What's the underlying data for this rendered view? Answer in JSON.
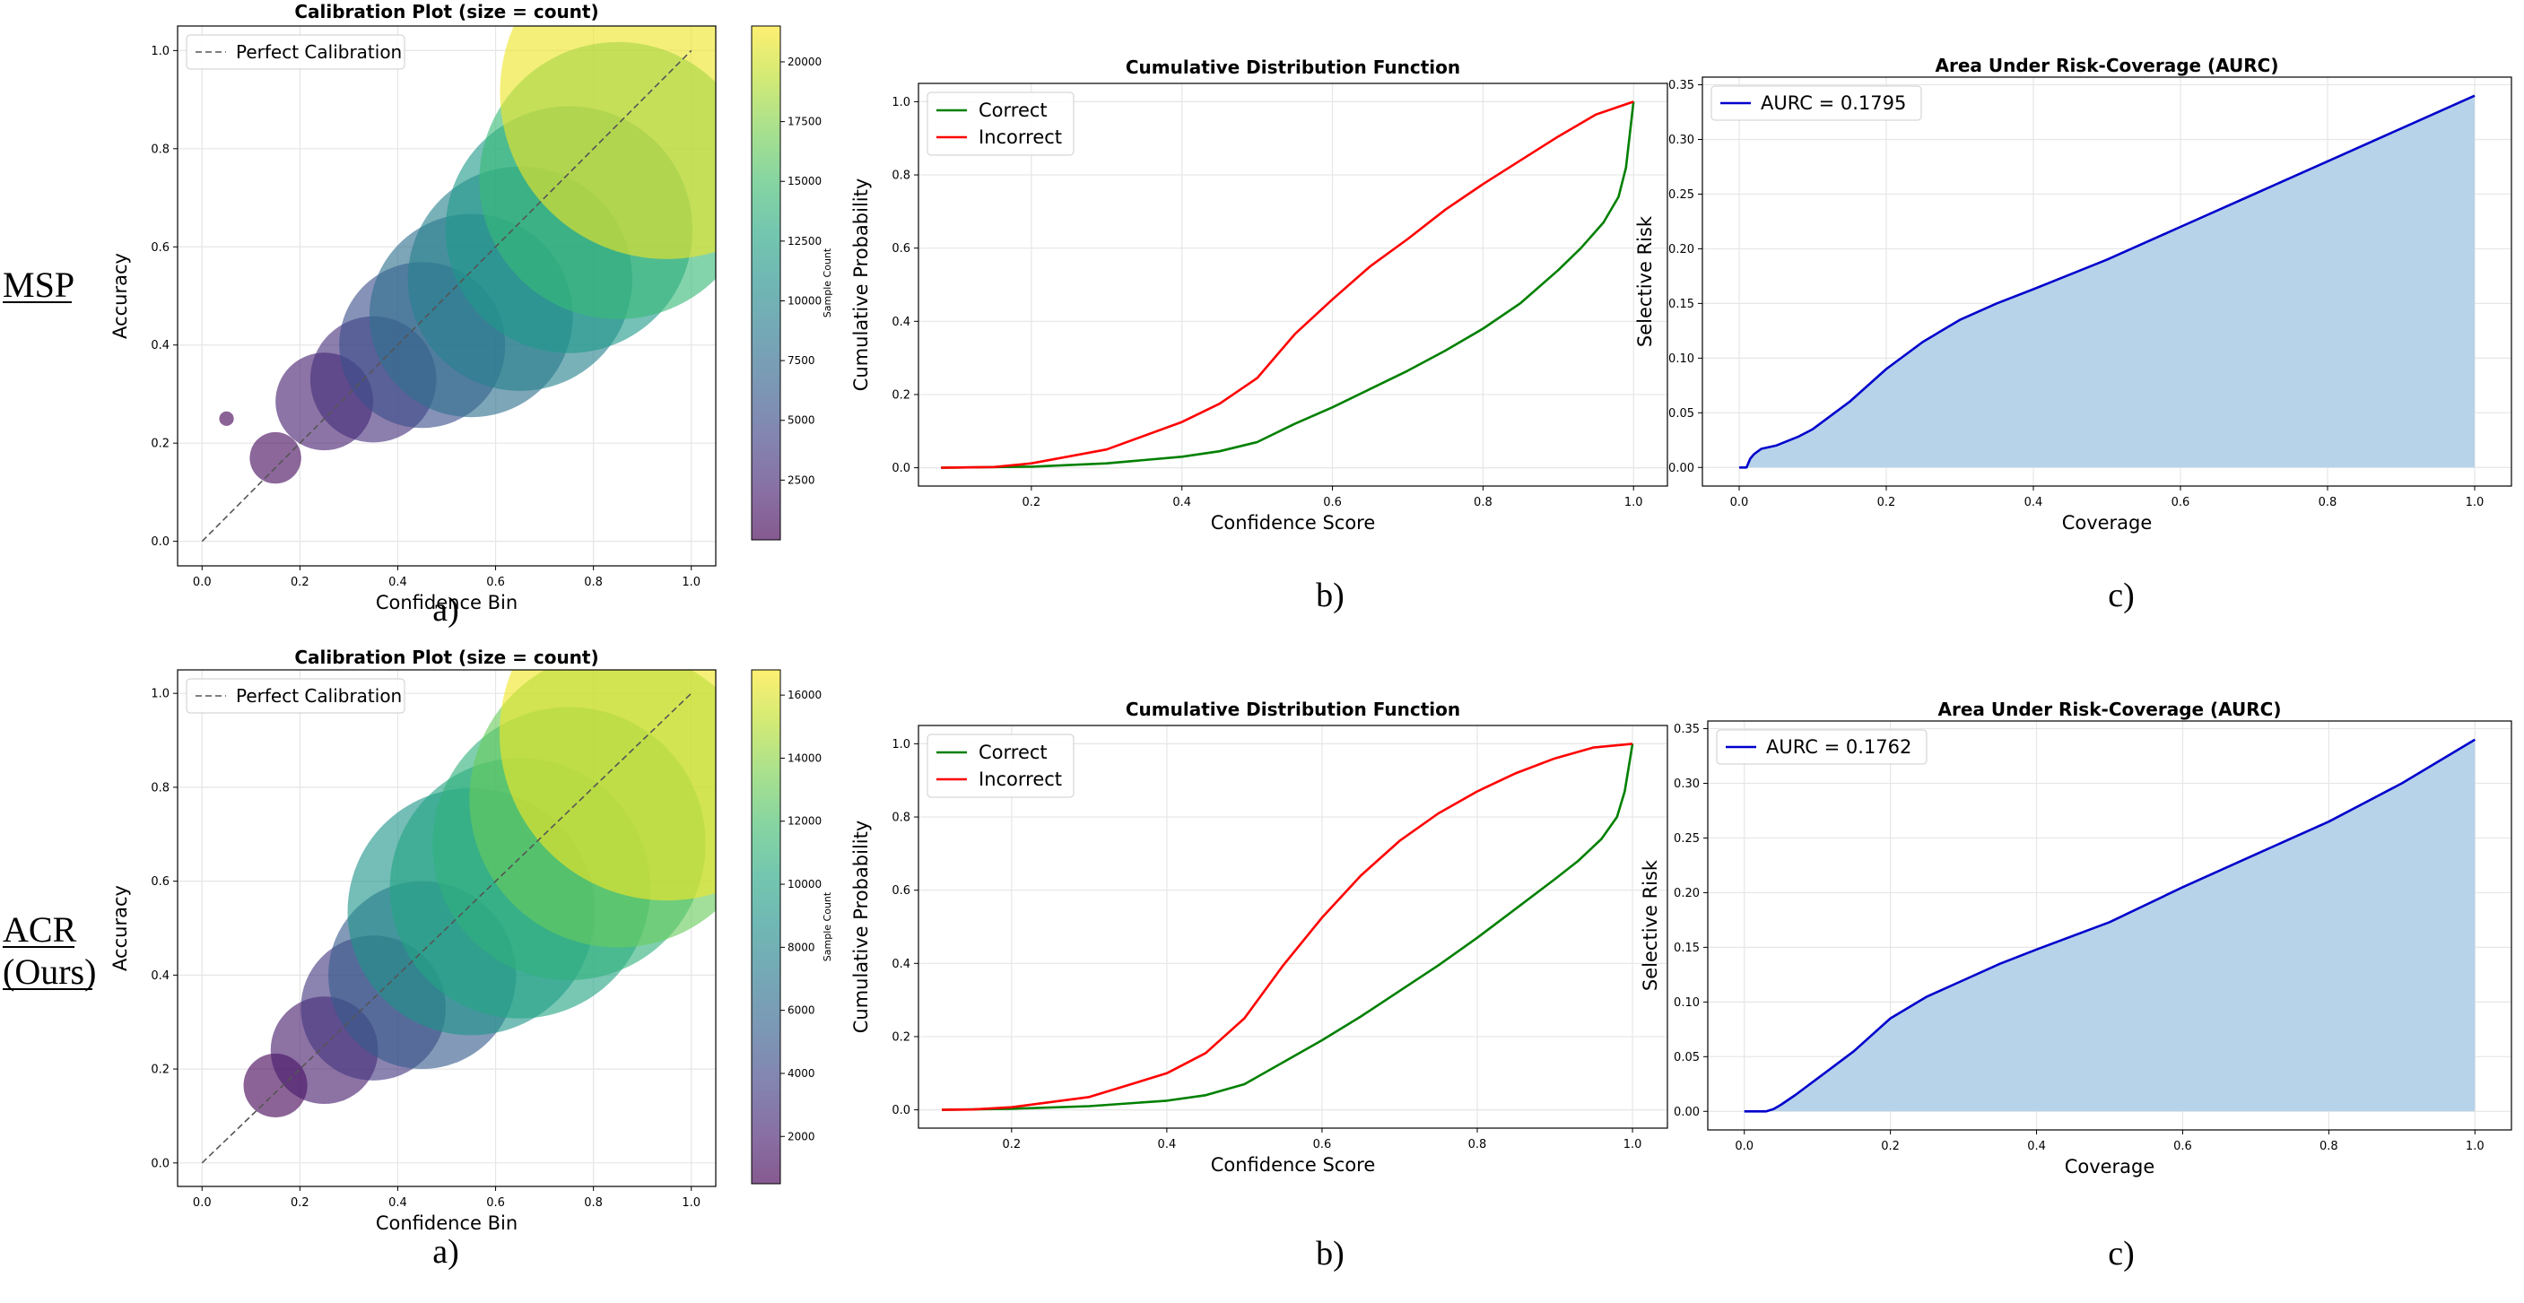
{
  "row_labels": [
    {
      "lines": [
        "MSP"
      ]
    },
    {
      "lines": [
        "ACR",
        "(Ours)"
      ]
    }
  ],
  "colors": {
    "correct": "#008000",
    "incorrect": "#ff0000",
    "aurc_line": "#0000cc",
    "aurc_fill": "#b7d3ea",
    "diag": "#555555",
    "grid": "#e6e6e6"
  },
  "chart_data": [
    {
      "id": "msp-calibration",
      "type": "scatter",
      "title": "Calibration Plot (size = count)",
      "xlabel": "Confidence Bin",
      "ylabel": "Accuracy",
      "xlim": [
        -0.05,
        1.05
      ],
      "ylim": [
        -0.05,
        1.05
      ],
      "xticks": [
        0.0,
        0.2,
        0.4,
        0.6,
        0.8,
        1.0
      ],
      "yticks": [
        0.0,
        0.2,
        0.4,
        0.6,
        0.8,
        1.0
      ],
      "legend": [
        "Perfect Calibration"
      ],
      "legend_position": "top-left",
      "sub_label": "a)",
      "colorbar": {
        "label": "Sample Count",
        "min": 0,
        "max": 21500,
        "ticks": [
          2500,
          5000,
          7500,
          10000,
          12500,
          15000,
          17500,
          20000
        ]
      },
      "points": [
        {
          "x": 0.05,
          "y": 0.25,
          "count": 40
        },
        {
          "x": 0.15,
          "y": 0.17,
          "count": 500
        },
        {
          "x": 0.25,
          "y": 0.285,
          "count": 1800
        },
        {
          "x": 0.35,
          "y": 0.33,
          "count": 3000
        },
        {
          "x": 0.45,
          "y": 0.4,
          "count": 5200
        },
        {
          "x": 0.55,
          "y": 0.46,
          "count": 7800
        },
        {
          "x": 0.65,
          "y": 0.535,
          "count": 9500
        },
        {
          "x": 0.75,
          "y": 0.635,
          "count": 11500
        },
        {
          "x": 0.85,
          "y": 0.735,
          "count": 14500
        },
        {
          "x": 0.95,
          "y": 0.915,
          "count": 21000
        }
      ]
    },
    {
      "id": "msp-cdf",
      "type": "line",
      "title": "Cumulative Distribution Function",
      "xlabel": "Confidence Score",
      "ylabel": "Cumulative Probability",
      "xlim": [
        0.05,
        1.045
      ],
      "ylim": [
        -0.05,
        1.05
      ],
      "xticks": [
        0.2,
        0.4,
        0.6,
        0.8,
        1.0
      ],
      "yticks": [
        0.0,
        0.2,
        0.4,
        0.6,
        0.8,
        1.0
      ],
      "legend_position": "top-left",
      "sub_label": "b)",
      "series": [
        {
          "name": "Correct",
          "color_key": "correct",
          "x": [
            0.08,
            0.2,
            0.3,
            0.4,
            0.45,
            0.5,
            0.55,
            0.6,
            0.65,
            0.7,
            0.75,
            0.8,
            0.85,
            0.9,
            0.93,
            0.96,
            0.98,
            0.99,
            1.0
          ],
          "y": [
            0.0,
            0.003,
            0.012,
            0.03,
            0.045,
            0.07,
            0.12,
            0.165,
            0.215,
            0.265,
            0.32,
            0.38,
            0.45,
            0.54,
            0.6,
            0.67,
            0.74,
            0.82,
            1.0
          ]
        },
        {
          "name": "Incorrect",
          "color_key": "incorrect",
          "x": [
            0.08,
            0.15,
            0.2,
            0.3,
            0.4,
            0.45,
            0.5,
            0.55,
            0.6,
            0.65,
            0.7,
            0.75,
            0.8,
            0.85,
            0.9,
            0.95,
            1.0
          ],
          "y": [
            0.0,
            0.002,
            0.012,
            0.05,
            0.125,
            0.175,
            0.245,
            0.365,
            0.46,
            0.55,
            0.625,
            0.705,
            0.775,
            0.84,
            0.905,
            0.965,
            1.0
          ]
        }
      ]
    },
    {
      "id": "msp-aurc",
      "type": "area",
      "title": "Area Under Risk-Coverage (AURC)",
      "xlabel": "Coverage",
      "ylabel": "Selective Risk",
      "xlim": [
        -0.05,
        1.05
      ],
      "ylim": [
        -0.017,
        0.357
      ],
      "xticks": [
        0.0,
        0.2,
        0.4,
        0.6,
        0.8,
        1.0
      ],
      "yticks": [
        0.0,
        0.05,
        0.1,
        0.15,
        0.2,
        0.25,
        0.3,
        0.35
      ],
      "legend_position": "top-left",
      "sub_label": "c)",
      "series": [
        {
          "name": "AURC = 0.1795",
          "color_key": "aurc_line",
          "x": [
            0.0,
            0.01,
            0.015,
            0.02,
            0.03,
            0.05,
            0.08,
            0.1,
            0.15,
            0.2,
            0.25,
            0.3,
            0.35,
            0.4,
            0.5,
            0.6,
            0.7,
            0.8,
            0.9,
            1.0
          ],
          "y": [
            0.0,
            0.0,
            0.008,
            0.012,
            0.017,
            0.02,
            0.028,
            0.035,
            0.06,
            0.09,
            0.115,
            0.135,
            0.15,
            0.163,
            0.19,
            0.22,
            0.25,
            0.28,
            0.31,
            0.34
          ]
        }
      ]
    },
    {
      "id": "acr-calibration",
      "type": "scatter",
      "title": "Calibration Plot (size = count)",
      "xlabel": "Confidence Bin",
      "ylabel": "Accuracy",
      "xlim": [
        -0.05,
        1.05
      ],
      "ylim": [
        -0.05,
        1.05
      ],
      "xticks": [
        0.0,
        0.2,
        0.4,
        0.6,
        0.8,
        1.0
      ],
      "yticks": [
        0.0,
        0.2,
        0.4,
        0.6,
        0.8,
        1.0
      ],
      "legend": [
        "Perfect Calibration"
      ],
      "legend_position": "top-left",
      "sub_label": "a)",
      "colorbar": {
        "label": "Sample Count",
        "min": 500,
        "max": 16800,
        "ticks": [
          2000,
          4000,
          6000,
          8000,
          10000,
          12000,
          14000,
          16000
        ]
      },
      "points": [
        {
          "x": 0.15,
          "y": 0.165,
          "count": 600
        },
        {
          "x": 0.25,
          "y": 0.24,
          "count": 1700
        },
        {
          "x": 0.35,
          "y": 0.33,
          "count": 3100
        },
        {
          "x": 0.45,
          "y": 0.4,
          "count": 5200
        },
        {
          "x": 0.55,
          "y": 0.535,
          "count": 9000
        },
        {
          "x": 0.65,
          "y": 0.585,
          "count": 10000
        },
        {
          "x": 0.75,
          "y": 0.68,
          "count": 11000
        },
        {
          "x": 0.85,
          "y": 0.775,
          "count": 13000
        },
        {
          "x": 0.95,
          "y": 0.915,
          "count": 16500
        }
      ]
    },
    {
      "id": "acr-cdf",
      "type": "line",
      "title": "Cumulative Distribution Function",
      "xlabel": "Confidence Score",
      "ylabel": "Cumulative Probability",
      "xlim": [
        0.08,
        1.045
      ],
      "ylim": [
        -0.05,
        1.05
      ],
      "xticks": [
        0.2,
        0.4,
        0.6,
        0.8,
        1.0
      ],
      "yticks": [
        0.0,
        0.2,
        0.4,
        0.6,
        0.8,
        1.0
      ],
      "legend_position": "top-left",
      "sub_label": "b)",
      "series": [
        {
          "name": "Correct",
          "color_key": "correct",
          "x": [
            0.11,
            0.2,
            0.3,
            0.4,
            0.45,
            0.5,
            0.55,
            0.6,
            0.65,
            0.7,
            0.75,
            0.8,
            0.85,
            0.9,
            0.93,
            0.96,
            0.98,
            0.99,
            1.0
          ],
          "y": [
            0.0,
            0.003,
            0.01,
            0.025,
            0.04,
            0.07,
            0.13,
            0.19,
            0.255,
            0.325,
            0.395,
            0.47,
            0.55,
            0.63,
            0.68,
            0.74,
            0.8,
            0.87,
            1.0
          ]
        },
        {
          "name": "Incorrect",
          "color_key": "incorrect",
          "x": [
            0.11,
            0.15,
            0.2,
            0.3,
            0.4,
            0.45,
            0.5,
            0.55,
            0.6,
            0.65,
            0.7,
            0.75,
            0.8,
            0.85,
            0.9,
            0.95,
            1.0
          ],
          "y": [
            0.0,
            0.001,
            0.007,
            0.035,
            0.1,
            0.155,
            0.25,
            0.395,
            0.525,
            0.64,
            0.735,
            0.81,
            0.87,
            0.92,
            0.96,
            0.99,
            1.0
          ]
        }
      ]
    },
    {
      "id": "acr-aurc",
      "type": "area",
      "title": "Area Under Risk-Coverage (AURC)",
      "xlabel": "Coverage",
      "ylabel": "Selective Risk",
      "xlim": [
        -0.05,
        1.05
      ],
      "ylim": [
        -0.017,
        0.357
      ],
      "xticks": [
        0.0,
        0.2,
        0.4,
        0.6,
        0.8,
        1.0
      ],
      "yticks": [
        0.0,
        0.05,
        0.1,
        0.15,
        0.2,
        0.25,
        0.3,
        0.35
      ],
      "legend_position": "top-left",
      "sub_label": "c)",
      "series": [
        {
          "name": "AURC = 0.1762",
          "color_key": "aurc_line",
          "x": [
            0.0,
            0.03,
            0.04,
            0.05,
            0.07,
            0.1,
            0.15,
            0.2,
            0.25,
            0.3,
            0.35,
            0.4,
            0.5,
            0.6,
            0.7,
            0.8,
            0.9,
            1.0
          ],
          "y": [
            0.0,
            0.0,
            0.002,
            0.006,
            0.015,
            0.03,
            0.055,
            0.085,
            0.105,
            0.12,
            0.135,
            0.148,
            0.173,
            0.205,
            0.235,
            0.265,
            0.3,
            0.34
          ]
        }
      ]
    }
  ]
}
